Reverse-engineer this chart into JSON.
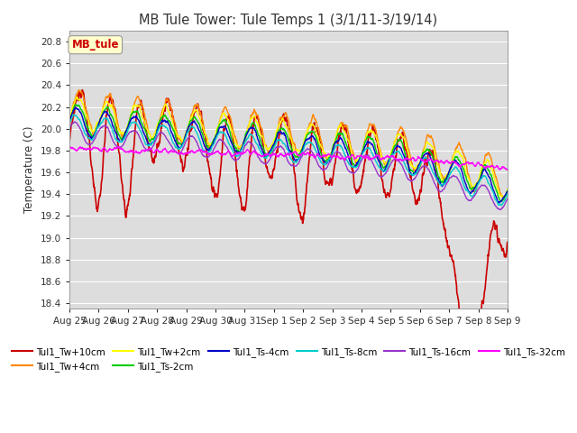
{
  "title": "MB Tule Tower: Tule Temps 1 (3/1/11-3/19/14)",
  "ylabel": "Temperature (C)",
  "ylim": [
    18.35,
    20.9
  ],
  "yticks": [
    18.4,
    18.6,
    18.8,
    19.0,
    19.2,
    19.4,
    19.6,
    19.8,
    20.0,
    20.2,
    20.4,
    20.6,
    20.8
  ],
  "x_labels": [
    "Aug 25",
    "Aug 26",
    "Aug 27",
    "Aug 28",
    "Aug 29",
    "Aug 30",
    "Aug 31",
    "Sep 1",
    "Sep 2",
    "Sep 3",
    "Sep 4",
    "Sep 5",
    "Sep 6",
    "Sep 7",
    "Sep 8",
    "Sep 9"
  ],
  "legend_box_label": "MB_tule",
  "legend_box_color": "#cc0000",
  "legend_box_bg": "#ffffcc",
  "background_color": "#ffffff",
  "plot_bg_color": "#dddddd",
  "grid_color": "#ffffff",
  "series": [
    {
      "label": "Tul1_Tw+10cm",
      "color": "#cc0000",
      "lw": 1.2
    },
    {
      "label": "Tul1_Tw+4cm",
      "color": "#ff8800",
      "lw": 1.0
    },
    {
      "label": "Tul1_Tw+2cm",
      "color": "#ffff00",
      "lw": 1.0
    },
    {
      "label": "Tul1_Ts-2cm",
      "color": "#00cc00",
      "lw": 1.0
    },
    {
      "label": "Tul1_Ts-4cm",
      "color": "#0000cc",
      "lw": 1.0
    },
    {
      "label": "Tul1_Ts-8cm",
      "color": "#00cccc",
      "lw": 1.0
    },
    {
      "label": "Tul1_Ts-16cm",
      "color": "#9933cc",
      "lw": 1.0
    },
    {
      "label": "Tul1_Ts-32cm",
      "color": "#ff00ff",
      "lw": 1.0
    }
  ]
}
